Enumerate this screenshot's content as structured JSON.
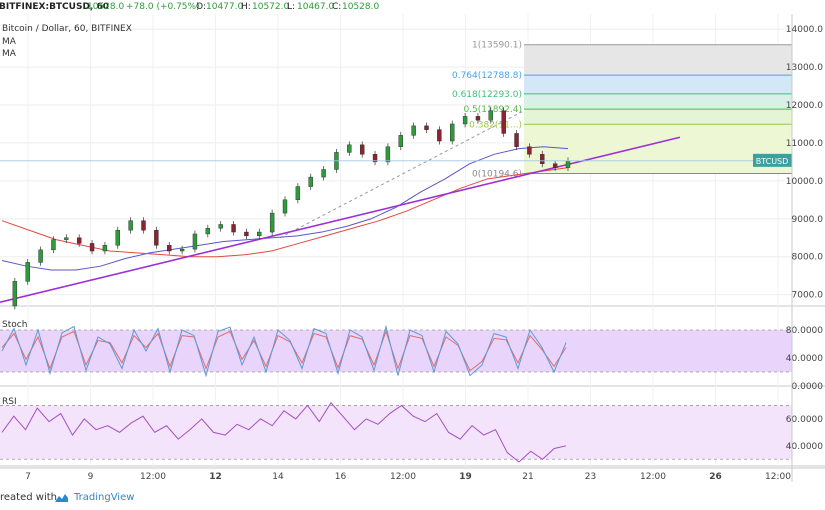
{
  "header": {
    "symbol": "BITFINEX:BTCUSD, 60",
    "open_value": "10528.0",
    "change": "+78.0 (+0.75%)",
    "o_label": "O:",
    "o_value": "10477.0",
    "h_label": "H:",
    "h_value": "10572.0",
    "l_label": "L:",
    "l_value": "10467.0",
    "c_label": "C:",
    "c_value": "10528.0",
    "description": "Bitcoin / Dollar, 60, BITFINEX",
    "ma1": "MA",
    "ma2": "MA"
  },
  "indicators": {
    "stoch_label": "Stoch",
    "rsi_label": "RSI"
  },
  "footer": {
    "made_with": "reated with",
    "brand": "TradingView"
  },
  "colors": {
    "accent": "#2e87c8",
    "up": "#2f9a3c",
    "down": "#8b2430",
    "trendline": "#9b30d9",
    "ma_fast": "#5a55c9",
    "ma_slow": "#e4493f",
    "stoch_k": "#5b9bd5",
    "stoch_d": "#e36b6b",
    "rsi": "#a54fc1"
  },
  "chart_data": [
    {
      "type": "line",
      "title": "Bitcoin / Dollar, 60, BITFINEX",
      "price_scale": {
        "ticks": [
          "14000.0",
          "13000.0",
          "12000.0",
          "11000.0",
          "10000.0",
          "9000.0",
          "8000.0",
          "7000.0"
        ],
        "ylim": [
          6700,
          14400
        ]
      },
      "x_tick_labels": [
        "7",
        "9",
        "12:00",
        "12",
        "14",
        "16",
        "12:00",
        "19",
        "21",
        "23",
        "12:00",
        "26",
        "12:00"
      ],
      "last_price_label": "BTCUSD",
      "last_price": 10528.0,
      "series": [
        {
          "values": [
            6700,
            7350,
            7850,
            8180,
            8450,
            8500,
            8350,
            8150,
            8300,
            8700,
            8950,
            8700,
            8300,
            8150,
            8200,
            8600,
            8750,
            8850,
            8650,
            8550,
            8650,
            9150,
            9500,
            9850,
            10100,
            10300,
            10750,
            10950,
            10700,
            10500,
            10900,
            11200,
            11450,
            11350,
            11050,
            11500,
            11700,
            11600,
            11850,
            11250,
            10900,
            10700,
            10450,
            10350,
            10528
          ]
        },
        {
          "values": [
            7900,
            7750,
            7650,
            7650,
            7750,
            7950,
            8100,
            8200,
            8300,
            8400,
            8450,
            8500,
            8550,
            8650,
            8800,
            9000,
            9300,
            9700,
            10050,
            10450,
            10700,
            10850,
            10900,
            10850
          ]
        },
        {
          "values": [
            8950,
            8700,
            8450,
            8300,
            8150,
            8100,
            8050,
            8000,
            8000,
            8050,
            8150,
            8350,
            8550,
            8750,
            8950,
            9200,
            9500,
            9800,
            10050,
            10150,
            10250,
            10350
          ]
        }
      ],
      "trendline": {
        "x0_index": 0,
        "y0": 6800,
        "x1_index": 44,
        "y1": 11150
      },
      "fibonacci": [
        {
          "label": "1(13590.1)",
          "value": 13590.1
        },
        {
          "label": "0.764(12788.8)",
          "value": 12788.8
        },
        {
          "label": "0.618(12293.0)",
          "value": 12293.0
        },
        {
          "label": "0.5(11892.4)",
          "value": 11892.4
        },
        {
          "label": "0.382(11...)",
          "value": 11491.8
        },
        {
          "label": "0(10194.6)",
          "value": 10194.6
        }
      ],
      "fib_zone_colors": [
        "#e6e6e6",
        "#d3e8f7",
        "#d9f0e8",
        "#e4f5d6",
        "#eef7d4"
      ]
    },
    {
      "type": "line",
      "title": "Stoch",
      "y_tick_labels": [
        "80.0000",
        "40.0000",
        "0.0000"
      ],
      "ylim": [
        0,
        100
      ],
      "band": [
        20,
        80
      ],
      "series": [
        {
          "values": [
            50,
            82,
            30,
            80,
            18,
            76,
            85,
            22,
            70,
            60,
            25,
            80,
            50,
            82,
            20,
            80,
            72,
            15,
            78,
            84,
            30,
            70,
            20,
            80,
            65,
            25,
            82,
            75,
            18,
            80,
            70,
            22,
            85,
            15,
            80,
            72,
            20,
            78,
            60,
            15,
            30,
            75,
            70,
            25,
            80,
            55,
            20,
            62
          ]
        },
        {
          "values": [
            55,
            75,
            38,
            70,
            25,
            70,
            78,
            30,
            65,
            62,
            33,
            72,
            55,
            75,
            28,
            72,
            70,
            25,
            70,
            78,
            38,
            65,
            28,
            72,
            63,
            33,
            75,
            70,
            26,
            72,
            67,
            30,
            78,
            25,
            72,
            68,
            28,
            70,
            58,
            22,
            35,
            68,
            66,
            33,
            72,
            52,
            28,
            55
          ]
        }
      ]
    },
    {
      "type": "line",
      "title": "RSI",
      "y_tick_labels": [
        "60.0000",
        "40.0000"
      ],
      "ylim": [
        25,
        80
      ],
      "band": [
        30,
        70
      ],
      "series": [
        {
          "values": [
            50,
            62,
            52,
            68,
            58,
            64,
            48,
            60,
            52,
            55,
            50,
            57,
            62,
            50,
            55,
            45,
            52,
            60,
            50,
            48,
            56,
            52,
            60,
            55,
            66,
            60,
            70,
            58,
            72,
            62,
            52,
            60,
            56,
            64,
            70,
            62,
            58,
            64,
            50,
            45,
            55,
            48,
            52,
            35,
            28,
            36,
            30,
            38,
            40
          ]
        }
      ]
    }
  ]
}
